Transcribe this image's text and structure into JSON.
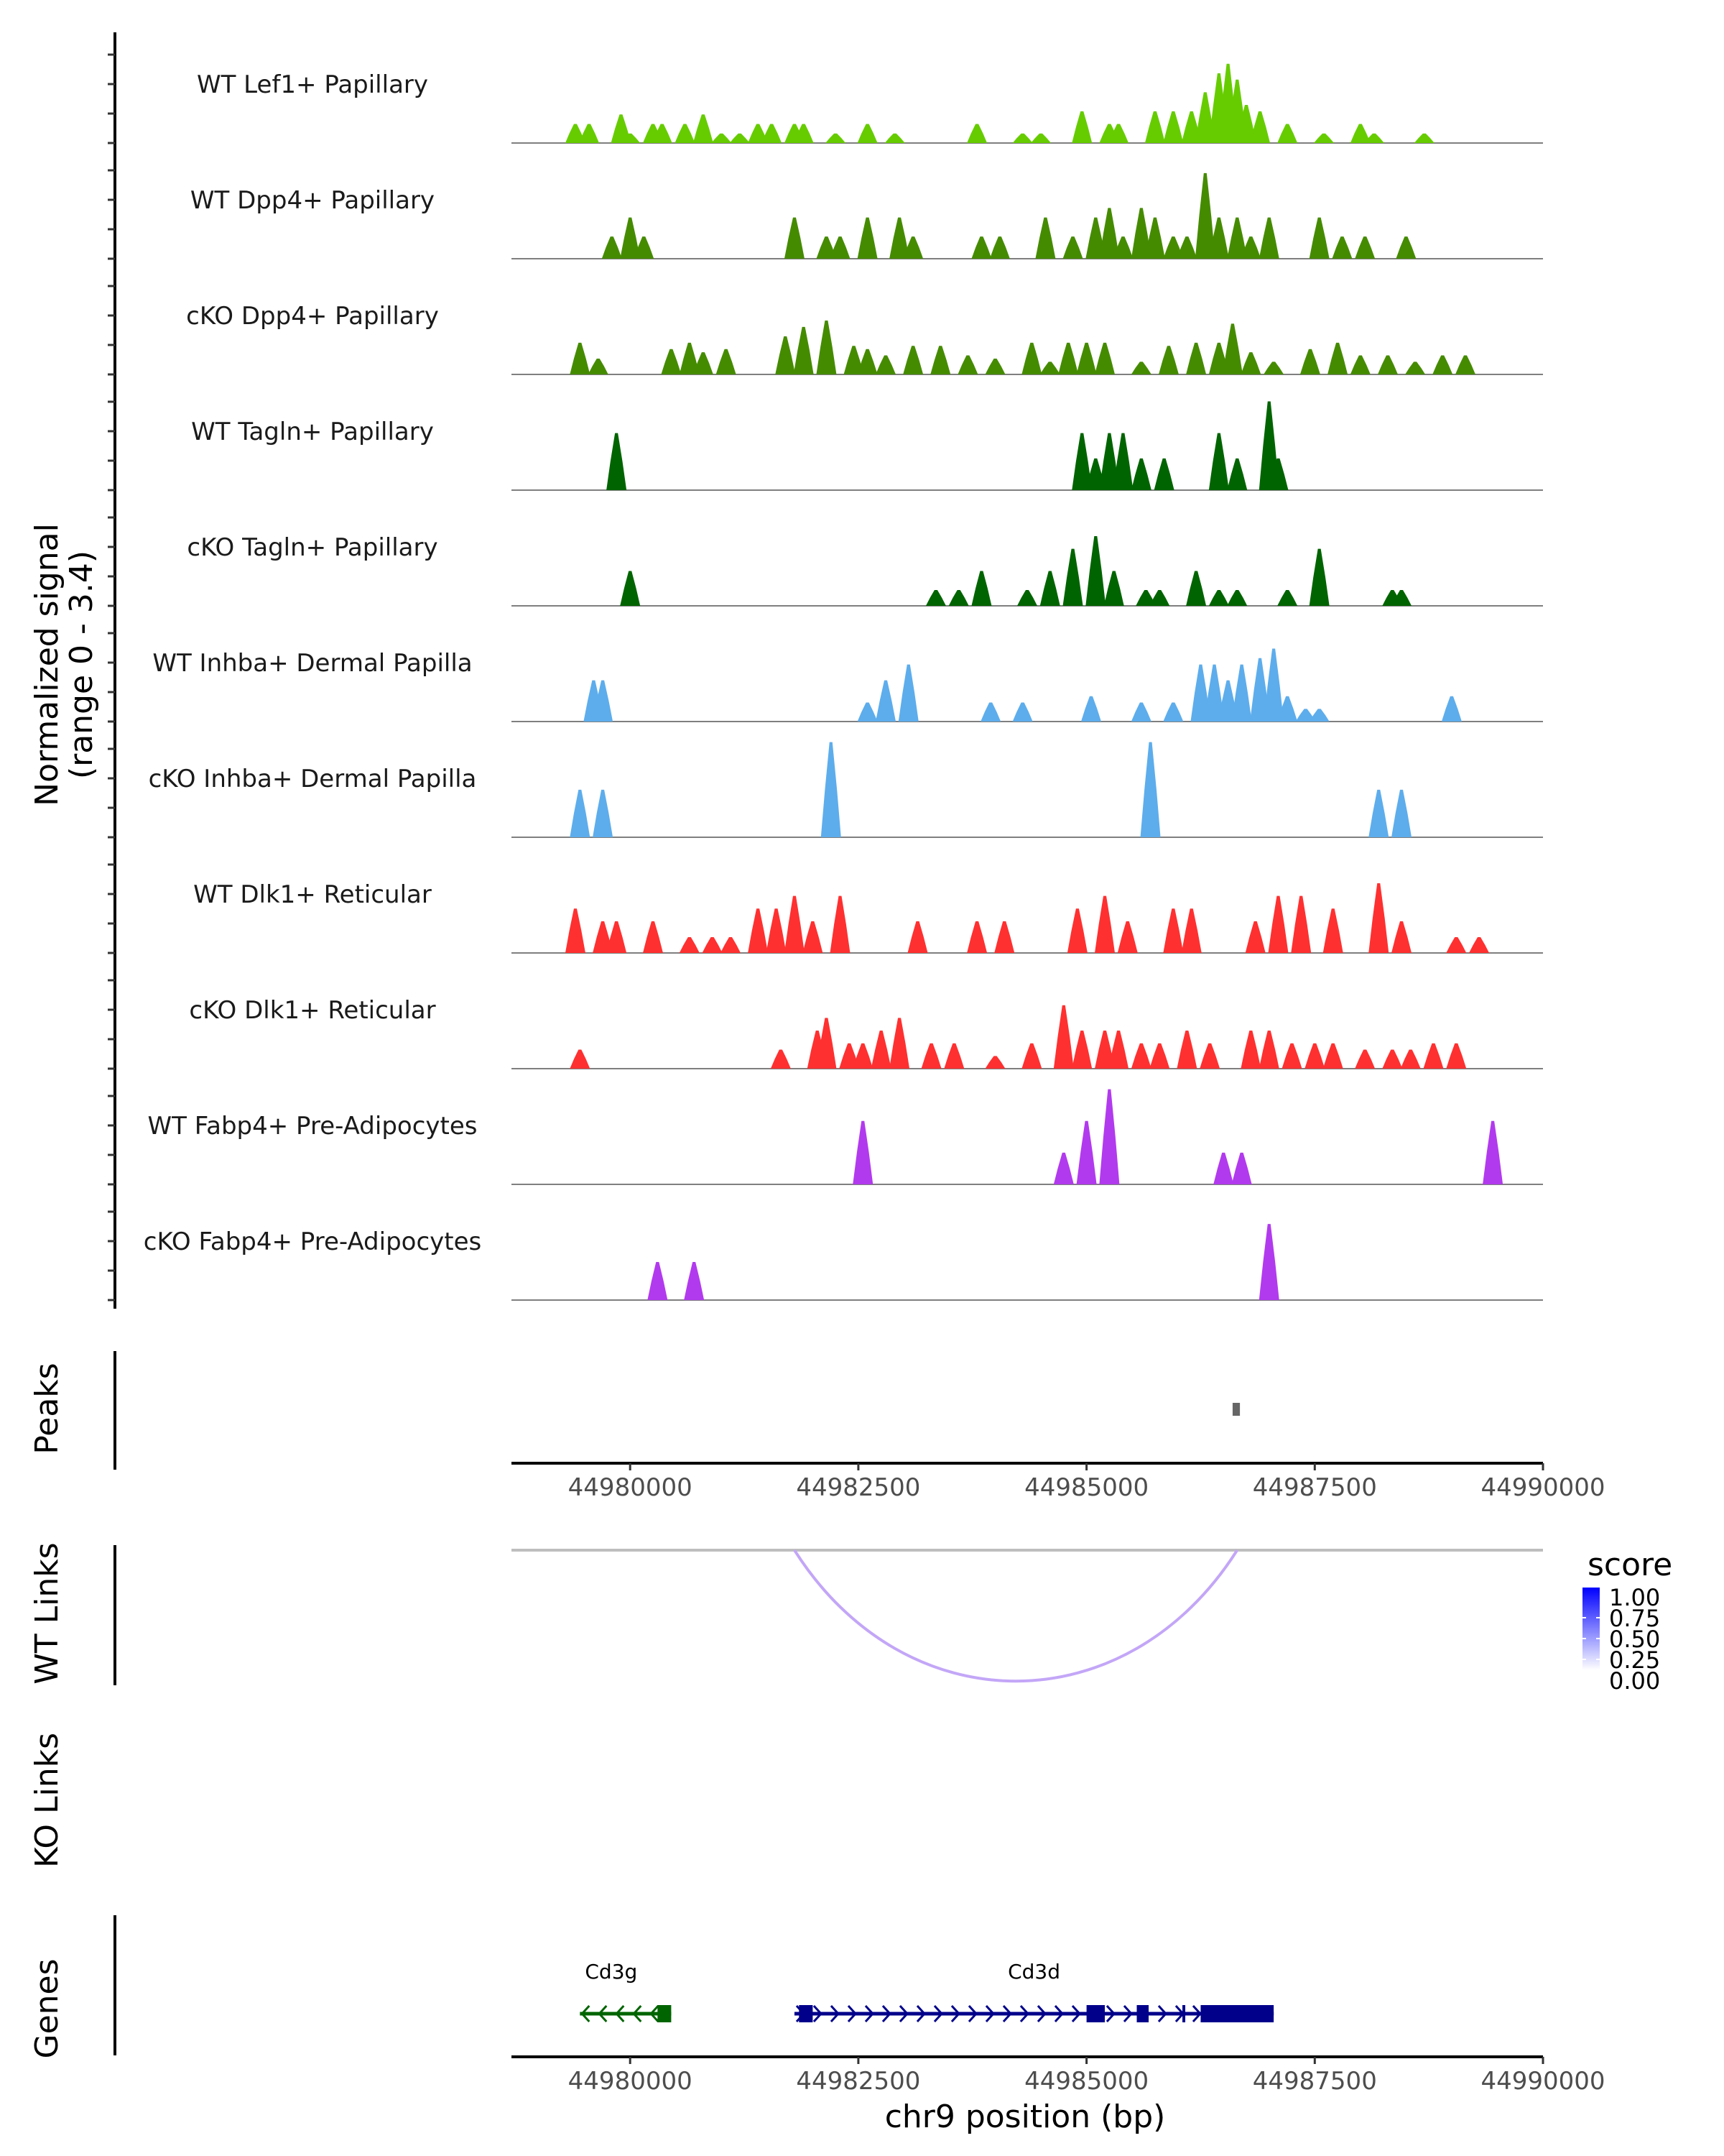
{
  "chart_data": {
    "type": "area",
    "title": "",
    "region": "chr9",
    "xlabel": "chr9 position (bp)",
    "xlim": [
      44978700,
      44990000
    ],
    "xticks": [
      44980000,
      44982500,
      44985000,
      44987500,
      44990000
    ],
    "xtick_labels": [
      "44980000",
      "44982500",
      "44985000",
      "44987500",
      "44990000"
    ],
    "coverage": {
      "ylabel": "Normalized signal\n(range 0 - 3.4)",
      "ylabel_line1": "Normalized signal",
      "ylabel_line2": "(range 0 - 3.4)",
      "ylim": [
        0,
        3.4
      ],
      "tracks": [
        {
          "name": "WT Lef1+ Papillary",
          "color": "#66CC00",
          "peaks": [
            [
              44979400,
              0.6
            ],
            [
              44979550,
              0.6
            ],
            [
              44979900,
              0.9
            ],
            [
              44980000,
              0.3
            ],
            [
              44980250,
              0.6
            ],
            [
              44980350,
              0.6
            ],
            [
              44980600,
              0.6
            ],
            [
              44980800,
              0.9
            ],
            [
              44981000,
              0.3
            ],
            [
              44981200,
              0.3
            ],
            [
              44981400,
              0.6
            ],
            [
              44981550,
              0.6
            ],
            [
              44981800,
              0.6
            ],
            [
              44981900,
              0.6
            ],
            [
              44982250,
              0.3
            ],
            [
              44982600,
              0.6
            ],
            [
              44982900,
              0.3
            ],
            [
              44983800,
              0.6
            ],
            [
              44984300,
              0.3
            ],
            [
              44984500,
              0.3
            ],
            [
              44984950,
              1.0
            ],
            [
              44985250,
              0.6
            ],
            [
              44985350,
              0.6
            ],
            [
              44985750,
              1.0
            ],
            [
              44985950,
              1.0
            ],
            [
              44986150,
              1.0
            ],
            [
              44986300,
              1.6
            ],
            [
              44986450,
              2.2
            ],
            [
              44986550,
              2.5
            ],
            [
              44986650,
              2.0
            ],
            [
              44986750,
              1.2
            ],
            [
              44986900,
              1.0
            ],
            [
              44987200,
              0.6
            ],
            [
              44987600,
              0.3
            ],
            [
              44988000,
              0.6
            ],
            [
              44988150,
              0.3
            ],
            [
              44988700,
              0.3
            ]
          ]
        },
        {
          "name": "WT Dpp4+ Papillary",
          "color": "#458B00",
          "peaks": [
            [
              44979800,
              0.7
            ],
            [
              44980000,
              1.3
            ],
            [
              44980150,
              0.7
            ],
            [
              44981800,
              1.3
            ],
            [
              44982150,
              0.7
            ],
            [
              44982300,
              0.7
            ],
            [
              44982600,
              1.3
            ],
            [
              44982950,
              1.3
            ],
            [
              44983100,
              0.7
            ],
            [
              44983850,
              0.7
            ],
            [
              44984050,
              0.7
            ],
            [
              44984550,
              1.3
            ],
            [
              44984850,
              0.7
            ],
            [
              44985100,
              1.3
            ],
            [
              44985250,
              1.6
            ],
            [
              44985400,
              0.7
            ],
            [
              44985600,
              1.6
            ],
            [
              44985750,
              1.3
            ],
            [
              44985950,
              0.7
            ],
            [
              44986100,
              0.7
            ],
            [
              44986300,
              2.7
            ],
            [
              44986450,
              1.3
            ],
            [
              44986650,
              1.3
            ],
            [
              44986800,
              0.7
            ],
            [
              44987000,
              1.3
            ],
            [
              44987550,
              1.3
            ],
            [
              44987800,
              0.7
            ],
            [
              44988050,
              0.7
            ],
            [
              44988500,
              0.7
            ]
          ]
        },
        {
          "name": "cKO Dpp4+ Papillary",
          "color": "#458B00",
          "peaks": [
            [
              44979450,
              1.0
            ],
            [
              44979650,
              0.5
            ],
            [
              44980450,
              0.8
            ],
            [
              44980650,
              1.0
            ],
            [
              44980800,
              0.7
            ],
            [
              44981050,
              0.8
            ],
            [
              44981700,
              1.2
            ],
            [
              44981900,
              1.5
            ],
            [
              44982150,
              1.7
            ],
            [
              44982450,
              0.9
            ],
            [
              44982600,
              0.8
            ],
            [
              44982800,
              0.6
            ],
            [
              44983100,
              0.9
            ],
            [
              44983400,
              0.9
            ],
            [
              44983700,
              0.6
            ],
            [
              44984000,
              0.5
            ],
            [
              44984400,
              1.0
            ],
            [
              44984600,
              0.4
            ],
            [
              44984800,
              1.0
            ],
            [
              44985000,
              1.0
            ],
            [
              44985200,
              1.0
            ],
            [
              44985600,
              0.4
            ],
            [
              44985900,
              0.9
            ],
            [
              44986200,
              1.0
            ],
            [
              44986450,
              1.0
            ],
            [
              44986600,
              1.6
            ],
            [
              44986800,
              0.7
            ],
            [
              44987050,
              0.4
            ],
            [
              44987450,
              0.8
            ],
            [
              44987750,
              1.0
            ],
            [
              44988000,
              0.6
            ],
            [
              44988300,
              0.6
            ],
            [
              44988600,
              0.4
            ],
            [
              44988900,
              0.6
            ],
            [
              44989150,
              0.6
            ]
          ]
        },
        {
          "name": "WT Tagln+ Papillary",
          "color": "#006400",
          "peaks": [
            [
              44979850,
              1.8
            ],
            [
              44984950,
              1.8
            ],
            [
              44985100,
              1.0
            ],
            [
              44985250,
              1.8
            ],
            [
              44985400,
              1.8
            ],
            [
              44985600,
              1.0
            ],
            [
              44985850,
              1.0
            ],
            [
              44986450,
              1.8
            ],
            [
              44986650,
              1.0
            ],
            [
              44987000,
              2.8
            ],
            [
              44987100,
              1.0
            ]
          ]
        },
        {
          "name": "cKO Tagln+ Papillary",
          "color": "#006400",
          "peaks": [
            [
              44980000,
              1.1
            ],
            [
              44983350,
              0.5
            ],
            [
              44983600,
              0.5
            ],
            [
              44983850,
              1.1
            ],
            [
              44984350,
              0.5
            ],
            [
              44984600,
              1.1
            ],
            [
              44984850,
              1.8
            ],
            [
              44985100,
              2.2
            ],
            [
              44985300,
              1.1
            ],
            [
              44985650,
              0.5
            ],
            [
              44985800,
              0.5
            ],
            [
              44986200,
              1.1
            ],
            [
              44986450,
              0.5
            ],
            [
              44986650,
              0.5
            ],
            [
              44987200,
              0.5
            ],
            [
              44987550,
              1.8
            ],
            [
              44988350,
              0.5
            ],
            [
              44988450,
              0.5
            ]
          ]
        },
        {
          "name": "WT Inhba+ Dermal Papilla",
          "color": "#5DADEC",
          "peaks": [
            [
              44979600,
              1.3
            ],
            [
              44979700,
              1.3
            ],
            [
              44982600,
              0.6
            ],
            [
              44982800,
              1.3
            ],
            [
              44983050,
              1.8
            ],
            [
              44983950,
              0.6
            ],
            [
              44984300,
              0.6
            ],
            [
              44985050,
              0.8
            ],
            [
              44985600,
              0.6
            ],
            [
              44985950,
              0.6
            ],
            [
              44986250,
              1.8
            ],
            [
              44986400,
              1.8
            ],
            [
              44986550,
              1.3
            ],
            [
              44986700,
              1.8
            ],
            [
              44986900,
              2.0
            ],
            [
              44987050,
              2.3
            ],
            [
              44987200,
              0.8
            ],
            [
              44987400,
              0.4
            ],
            [
              44987550,
              0.4
            ],
            [
              44989000,
              0.8
            ]
          ]
        },
        {
          "name": "cKO Inhba+ Dermal Papilla",
          "color": "#5DADEC",
          "peaks": [
            [
              44979450,
              1.5
            ],
            [
              44979700,
              1.5
            ],
            [
              44982200,
              3.0
            ],
            [
              44985700,
              3.0
            ],
            [
              44988200,
              1.5
            ],
            [
              44988450,
              1.5
            ]
          ]
        },
        {
          "name": "WT Dlk1+ Reticular",
          "color": "#FF3030",
          "peaks": [
            [
              44979400,
              1.4
            ],
            [
              44979700,
              1.0
            ],
            [
              44979850,
              1.0
            ],
            [
              44980250,
              1.0
            ],
            [
              44980650,
              0.5
            ],
            [
              44980900,
              0.5
            ],
            [
              44981100,
              0.5
            ],
            [
              44981400,
              1.4
            ],
            [
              44981600,
              1.4
            ],
            [
              44981800,
              1.8
            ],
            [
              44982000,
              1.0
            ],
            [
              44982300,
              1.8
            ],
            [
              44983150,
              1.0
            ],
            [
              44983800,
              1.0
            ],
            [
              44984100,
              1.0
            ],
            [
              44984900,
              1.4
            ],
            [
              44985200,
              1.8
            ],
            [
              44985450,
              1.0
            ],
            [
              44985950,
              1.4
            ],
            [
              44986150,
              1.4
            ],
            [
              44986850,
              1.0
            ],
            [
              44987100,
              1.8
            ],
            [
              44987350,
              1.8
            ],
            [
              44987700,
              1.4
            ],
            [
              44988200,
              2.2
            ],
            [
              44988450,
              1.0
            ],
            [
              44989050,
              0.5
            ],
            [
              44989300,
              0.5
            ]
          ]
        },
        {
          "name": "cKO Dlk1+ Reticular",
          "color": "#FF3030",
          "peaks": [
            [
              44979450,
              0.6
            ],
            [
              44981650,
              0.6
            ],
            [
              44982050,
              1.2
            ],
            [
              44982150,
              1.6
            ],
            [
              44982400,
              0.8
            ],
            [
              44982550,
              0.8
            ],
            [
              44982750,
              1.2
            ],
            [
              44982950,
              1.6
            ],
            [
              44983300,
              0.8
            ],
            [
              44983550,
              0.8
            ],
            [
              44984000,
              0.4
            ],
            [
              44984400,
              0.8
            ],
            [
              44984750,
              2.0
            ],
            [
              44984950,
              1.2
            ],
            [
              44985200,
              1.2
            ],
            [
              44985350,
              1.2
            ],
            [
              44985600,
              0.8
            ],
            [
              44985800,
              0.8
            ],
            [
              44986100,
              1.2
            ],
            [
              44986350,
              0.8
            ],
            [
              44986800,
              1.2
            ],
            [
              44987000,
              1.2
            ],
            [
              44987250,
              0.8
            ],
            [
              44987500,
              0.8
            ],
            [
              44987700,
              0.8
            ],
            [
              44988050,
              0.6
            ],
            [
              44988350,
              0.6
            ],
            [
              44988550,
              0.6
            ],
            [
              44988800,
              0.8
            ],
            [
              44989050,
              0.8
            ]
          ]
        },
        {
          "name": "WT Fabp4+ Pre-Adipocytes",
          "color": "#B23AEE",
          "peaks": [
            [
              44982550,
              2.0
            ],
            [
              44984750,
              1.0
            ],
            [
              44985000,
              2.0
            ],
            [
              44985250,
              3.0
            ],
            [
              44986500,
              1.0
            ],
            [
              44986700,
              1.0
            ],
            [
              44989450,
              2.0
            ]
          ]
        },
        {
          "name": "cKO Fabp4+ Pre-Adipocytes",
          "color": "#B23AEE",
          "peaks": [
            [
              44980300,
              1.2
            ],
            [
              44980700,
              1.2
            ],
            [
              44987000,
              2.4
            ]
          ]
        }
      ]
    },
    "peaks_track": {
      "label": "Peaks",
      "color": "#666666",
      "regions": [
        [
          44986600,
          44986680
        ]
      ]
    },
    "links_tracks": [
      {
        "label": "WT Links",
        "links": [
          {
            "start": 44981800,
            "end": 44986650,
            "score": 0.35
          }
        ]
      },
      {
        "label": "KO Links",
        "links": []
      }
    ],
    "legend": {
      "title": "score",
      "ticks": [
        "1.00",
        "0.75",
        "0.50",
        "0.25",
        "0.00"
      ],
      "low_color": "#FFFFFF",
      "high_color": "#0000FF",
      "placement": "right"
    },
    "genes_track": {
      "label": "Genes",
      "genes": [
        {
          "name": "Cd3g",
          "strand": "-",
          "color": "#006400",
          "start": 44979450,
          "end": 44980450,
          "exons": [
            [
              44980300,
              44980450
            ]
          ]
        },
        {
          "name": "Cd3d",
          "strand": "+",
          "color": "#00008B",
          "start": 44981800,
          "end": 44987050,
          "exons": [
            [
              44981850,
              44982000
            ],
            [
              44985000,
              44985200
            ],
            [
              44985550,
              44985680
            ],
            [
              44986050,
              44986070
            ],
            [
              44986250,
              44987050
            ]
          ]
        }
      ]
    }
  }
}
